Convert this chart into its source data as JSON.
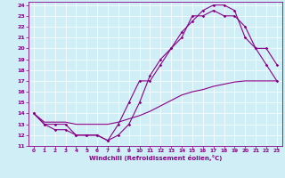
{
  "xlabel": "Windchill (Refroidissement éolien,°C)",
  "xlim": [
    -0.5,
    23.5
  ],
  "ylim": [
    11,
    24.3
  ],
  "yticks": [
    11,
    12,
    13,
    14,
    15,
    16,
    17,
    18,
    19,
    20,
    21,
    22,
    23,
    24
  ],
  "xticks": [
    0,
    1,
    2,
    3,
    4,
    5,
    6,
    7,
    8,
    9,
    10,
    11,
    12,
    13,
    14,
    15,
    16,
    17,
    18,
    19,
    20,
    21,
    22,
    23
  ],
  "background_color": "#d0eef5",
  "grid_color": "#ffffff",
  "line_color": "#880088",
  "line1_x": [
    0,
    1,
    2,
    3,
    4,
    5,
    6,
    7,
    8,
    9,
    10,
    11,
    12,
    13,
    14,
    15,
    16,
    17,
    18,
    19,
    20,
    21,
    22,
    23
  ],
  "line1_y": [
    14,
    13,
    13,
    13,
    12,
    12,
    12,
    11.5,
    12,
    13,
    15,
    17.5,
    19,
    20,
    21.5,
    22.5,
    23.5,
    24,
    24,
    23.5,
    21,
    20,
    18.5,
    17
  ],
  "line2_x": [
    0,
    1,
    2,
    3,
    4,
    5,
    6,
    7,
    8,
    9,
    10,
    11,
    12,
    13,
    14,
    15,
    16,
    17,
    18,
    19,
    20,
    21,
    22,
    23
  ],
  "line2_y": [
    14,
    13,
    12.5,
    12.5,
    12,
    12,
    12,
    11.5,
    13,
    15,
    17,
    17,
    18.5,
    20,
    21,
    23,
    23,
    23.5,
    23,
    23,
    22,
    20,
    20,
    18.5
  ],
  "line3_x": [
    0,
    1,
    2,
    3,
    4,
    5,
    6,
    7,
    8,
    9,
    10,
    11,
    12,
    13,
    14,
    15,
    16,
    17,
    18,
    19,
    20,
    21,
    22,
    23
  ],
  "line3_y": [
    14,
    13.2,
    13.2,
    13.2,
    13.0,
    13.0,
    13.0,
    13.0,
    13.2,
    13.5,
    13.8,
    14.2,
    14.7,
    15.2,
    15.7,
    16.0,
    16.2,
    16.5,
    16.7,
    16.9,
    17.0,
    17.0,
    17.0,
    17.0
  ]
}
